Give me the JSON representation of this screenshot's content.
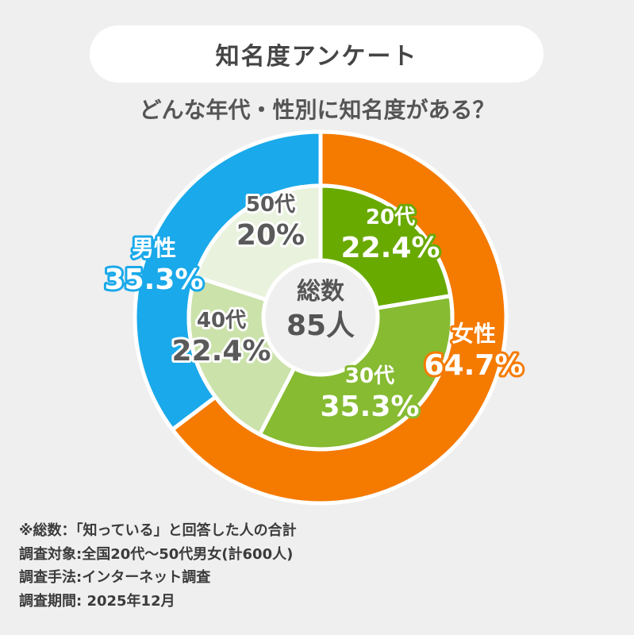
{
  "header": {
    "title": "知名度アンケート",
    "subtitle": "どんな年代・性別に知名度がある？"
  },
  "colors": {
    "male": "#1aa9ea",
    "female": "#f57a00",
    "age_20": "#69aa00",
    "age_30": "#86bb32",
    "age_40": "#cbe2ab",
    "age_50": "#e9f2dd",
    "center_text": "#555555"
  },
  "chart_data": {
    "type": "pie",
    "variant": "nested-donut",
    "center_label": "総数",
    "center_value": "85人",
    "outer_ring": [
      {
        "name": "女性",
        "label": "64.7%",
        "value": 64.7,
        "color": "#f57a00",
        "text_color": "#ffffff",
        "outline": "#f57a00"
      },
      {
        "name": "男性",
        "label": "35.3%",
        "value": 35.3,
        "color": "#1aa9ea",
        "text_color": "#ffffff",
        "outline": "#1aa9ea"
      }
    ],
    "inner_ring": [
      {
        "name": "20代",
        "label": "22.4%",
        "value": 22.4,
        "color": "#69aa00",
        "text_color": "#ffffff",
        "outline": "#69aa00"
      },
      {
        "name": "30代",
        "label": "35.3%",
        "value": 35.3,
        "color": "#86bb32",
        "text_color": "#ffffff",
        "outline": "#86bb32"
      },
      {
        "name": "40代",
        "label": "22.4%",
        "value": 22.4,
        "color": "#cbe2ab",
        "text_color": "#5a5a5a",
        "outline": "#ffffff"
      },
      {
        "name": "50代",
        "label": "20%",
        "value": 20,
        "color": "#e9f2dd",
        "text_color": "#5a5a5a",
        "outline": "#ffffff"
      }
    ]
  },
  "notes": [
    "※総数：「知っている」と回答した人の合計",
    "調査対象:全国20代～50代男女(計600人)",
    "調査手法:インターネット調査",
    "調査期間: 2025年12月"
  ]
}
